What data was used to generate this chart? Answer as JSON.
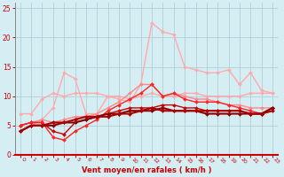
{
  "xlabel": "Vent moyen/en rafales ( km/h )",
  "xlim": [
    -0.5,
    23.5
  ],
  "ylim": [
    0,
    26
  ],
  "xticks": [
    0,
    1,
    2,
    3,
    4,
    5,
    6,
    7,
    8,
    9,
    10,
    11,
    12,
    13,
    14,
    15,
    16,
    17,
    18,
    19,
    20,
    21,
    22,
    23
  ],
  "yticks": [
    0,
    5,
    10,
    15,
    20,
    25
  ],
  "background_color": "#d4eef4",
  "grid_color": "#b0d0d8",
  "series": [
    {
      "x": [
        0,
        1,
        2,
        3,
        4,
        5,
        6,
        7,
        8,
        9,
        10,
        11,
        12,
        13,
        14,
        15,
        16,
        17,
        18,
        19,
        20,
        21,
        22,
        23
      ],
      "y": [
        7,
        7,
        9.5,
        10.5,
        10,
        10.5,
        10.5,
        10.5,
        10,
        10,
        9.5,
        10,
        10.5,
        10,
        10,
        10.5,
        10.5,
        10,
        10,
        10,
        10,
        10.5,
        10.5,
        10.5
      ],
      "color": "#ffaaaa",
      "lw": 1.0
    },
    {
      "x": [
        0,
        1,
        2,
        3,
        4,
        5,
        6,
        7,
        8,
        9,
        10,
        11,
        12,
        13,
        14,
        15,
        16,
        17,
        18,
        19,
        20,
        21,
        22,
        23
      ],
      "y": [
        4,
        5,
        6,
        8,
        14,
        13,
        7,
        7,
        10,
        9.5,
        9,
        12,
        22.5,
        21,
        20.5,
        15,
        14.5,
        14,
        14,
        14.5,
        12,
        14,
        11,
        10.5
      ],
      "color": "#ffaaaa",
      "lw": 1.0
    },
    {
      "x": [
        0,
        1,
        2,
        3,
        4,
        5,
        6,
        7,
        8,
        9,
        10,
        11,
        12,
        13,
        14,
        15,
        16,
        17,
        18,
        19,
        20,
        21,
        22,
        23
      ],
      "y": [
        5,
        5.5,
        6,
        5.5,
        6,
        6.5,
        6.5,
        7,
        8,
        9,
        10.5,
        12,
        12,
        10,
        10.5,
        10,
        9.5,
        9.5,
        9,
        8.5,
        8.5,
        8,
        8,
        8
      ],
      "color": "#ff8888",
      "lw": 1.0
    },
    {
      "x": [
        0,
        1,
        2,
        3,
        4,
        5,
        6,
        7,
        8,
        9,
        10,
        11,
        12,
        13,
        14,
        15,
        16,
        17,
        18,
        19,
        20,
        21,
        22,
        23
      ],
      "y": [
        5,
        5.5,
        5.5,
        4,
        3.5,
        5.5,
        6,
        6.5,
        7,
        7.5,
        8,
        8,
        8,
        8.5,
        8.5,
        8,
        8,
        7.5,
        7.5,
        7.5,
        7.5,
        7,
        7,
        8
      ],
      "color": "#cc0000",
      "lw": 1.0
    },
    {
      "x": [
        0,
        1,
        2,
        3,
        4,
        5,
        6,
        7,
        8,
        9,
        10,
        11,
        12,
        13,
        14,
        15,
        16,
        17,
        18,
        19,
        20,
        21,
        22,
        23
      ],
      "y": [
        5,
        5.5,
        5.5,
        3,
        2.5,
        4,
        5,
        6,
        7.5,
        8.5,
        9.5,
        10.5,
        12,
        10,
        10.5,
        9.5,
        9,
        9,
        9,
        8.5,
        8,
        7.5,
        7,
        8
      ],
      "color": "#ff2222",
      "lw": 1.0
    },
    {
      "x": [
        0,
        1,
        2,
        3,
        4,
        5,
        6,
        7,
        8,
        9,
        10,
        11,
        12,
        13,
        14,
        15,
        16,
        17,
        18,
        19,
        20,
        21,
        22,
        23
      ],
      "y": [
        4,
        5,
        5,
        5,
        5.5,
        5.5,
        6,
        6.5,
        7,
        7,
        7.5,
        7.5,
        7.5,
        8,
        7.5,
        7.5,
        7.5,
        7,
        7,
        7,
        7,
        7,
        7,
        8
      ],
      "color": "#880000",
      "lw": 1.5
    },
    {
      "x": [
        0,
        1,
        2,
        3,
        4,
        5,
        6,
        7,
        8,
        9,
        10,
        11,
        12,
        13,
        14,
        15,
        16,
        17,
        18,
        19,
        20,
        21,
        22,
        23
      ],
      "y": [
        4,
        5,
        5,
        5.5,
        5.5,
        6,
        6.5,
        6.5,
        6.5,
        7,
        7,
        7.5,
        8,
        7.5,
        7.5,
        7.5,
        7.5,
        7.5,
        7.5,
        7.5,
        7.5,
        7,
        7,
        7.5
      ],
      "color": "#aa0000",
      "lw": 1.5
    }
  ]
}
